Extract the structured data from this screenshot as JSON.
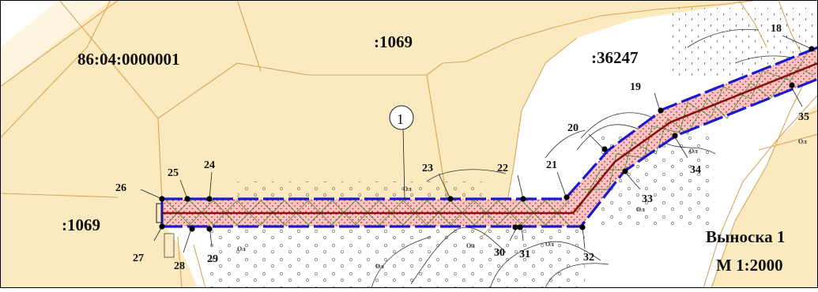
{
  "map": {
    "parcels": {
      "cadastral_quarter": "86:04:0000001",
      "top_parcel": ":1069",
      "left_parcel": ":1069",
      "right_parcel": ":36247"
    },
    "callout": {
      "marker": "1",
      "title": "Выноска 1",
      "scale": "М 1:2000"
    },
    "points": {
      "p18": "18",
      "p19": "19",
      "p20": "20",
      "p21": "21",
      "p22": "22",
      "p23": "23",
      "p24": "24",
      "p25": "25",
      "p26": "26",
      "p27": "27",
      "p28": "28",
      "p29": "29",
      "p30": "30",
      "p31": "31",
      "p32": "32",
      "p33": "33",
      "p34": "34",
      "p35": "35"
    },
    "colors": {
      "parcel_fill": "#fbeac0",
      "parcel_border": "#d9a55a",
      "corridor_fill": "#f6c6c6",
      "corridor_dots": "#d02020",
      "boundary_blue": "#1a1acc",
      "centerline": "#8b1010",
      "cross_hatch": "#3a8a2a",
      "vertex": "#000000",
      "text": "#111111"
    },
    "map_symbol": "Ол"
  }
}
